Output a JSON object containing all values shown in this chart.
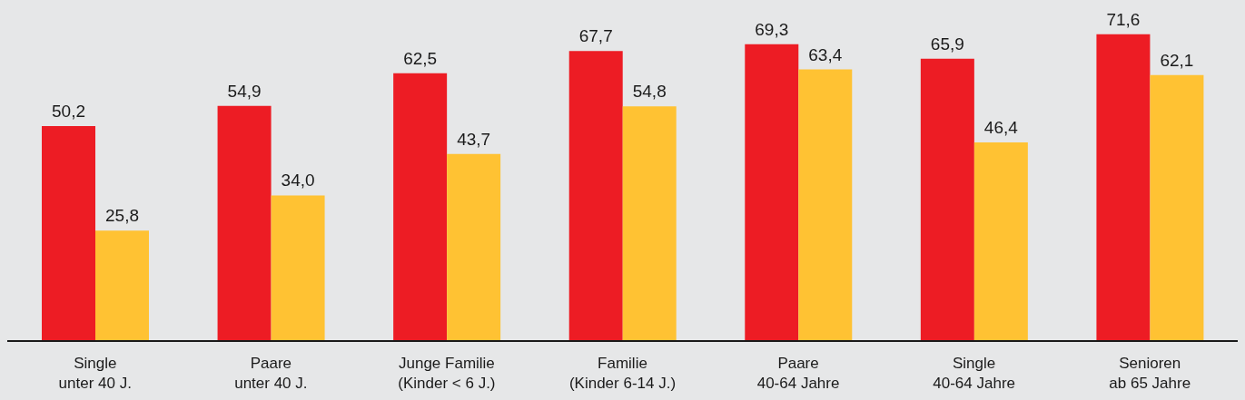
{
  "chart_data": {
    "type": "bar",
    "relative": false,
    "categories": [
      "Single\nunter 40 J.",
      "Paare\nunter 40 J.",
      "Junge Familie\n(Kinder < 6 J.)",
      "Familie\n(Kinder 6-14 J.)",
      "Paare\n40-64 Jahre",
      "Single\n40-64 Jahre",
      "Senioren\nab 65 Jahre"
    ],
    "series": [
      {
        "color": "#ed1c24",
        "values": [
          50.2,
          54.9,
          62.5,
          67.7,
          69.3,
          65.9,
          71.6
        ],
        "value_labels": [
          "50,2",
          "54,9",
          "62,5",
          "67,7",
          "69,3",
          "65,9",
          "71,6"
        ]
      },
      {
        "color": "#ffc233",
        "values": [
          25.8,
          34.0,
          43.7,
          54.8,
          63.4,
          46.4,
          62.1
        ],
        "value_labels": [
          "25,8",
          "34,0",
          "43,7",
          "54,8",
          "63,4",
          "46,4",
          "62,1"
        ]
      }
    ],
    "grid": false,
    "legend": false
  }
}
